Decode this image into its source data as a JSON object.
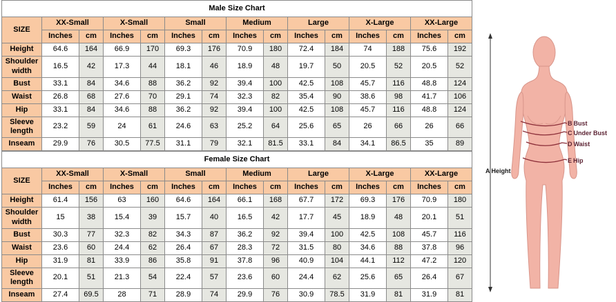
{
  "charts": [
    {
      "title": "Male Size Chart",
      "size_label": "SIZE",
      "sizes": [
        "XX-Small",
        "X-Small",
        "Small",
        "Medium",
        "Large",
        "X-Large",
        "XX-Large"
      ],
      "units": [
        "Inches",
        "cm"
      ],
      "rows": [
        {
          "label": "Height",
          "values": [
            "64.6",
            "164",
            "66.9",
            "170",
            "69.3",
            "176",
            "70.9",
            "180",
            "72.4",
            "184",
            "74",
            "188",
            "75.6",
            "192"
          ]
        },
        {
          "label": "Shoulder width",
          "values": [
            "16.5",
            "42",
            "17.3",
            "44",
            "18.1",
            "46",
            "18.9",
            "48",
            "19.7",
            "50",
            "20.5",
            "52",
            "20.5",
            "52"
          ]
        },
        {
          "label": "Bust",
          "values": [
            "33.1",
            "84",
            "34.6",
            "88",
            "36.2",
            "92",
            "39.4",
            "100",
            "42.5",
            "108",
            "45.7",
            "116",
            "48.8",
            "124"
          ]
        },
        {
          "label": "Waist",
          "values": [
            "26.8",
            "68",
            "27.6",
            "70",
            "29.1",
            "74",
            "32.3",
            "82",
            "35.4",
            "90",
            "38.6",
            "98",
            "41.7",
            "106"
          ]
        },
        {
          "label": "Hip",
          "values": [
            "33.1",
            "84",
            "34.6",
            "88",
            "36.2",
            "92",
            "39.4",
            "100",
            "42.5",
            "108",
            "45.7",
            "116",
            "48.8",
            "124"
          ]
        },
        {
          "label": "Sleeve length",
          "values": [
            "23.2",
            "59",
            "24",
            "61",
            "24.6",
            "63",
            "25.2",
            "64",
            "25.6",
            "65",
            "26",
            "66",
            "26",
            "66"
          ]
        },
        {
          "label": "Inseam",
          "values": [
            "29.9",
            "76",
            "30.5",
            "77.5",
            "31.1",
            "79",
            "32.1",
            "81.5",
            "33.1",
            "84",
            "34.1",
            "86.5",
            "35",
            "89"
          ]
        }
      ]
    },
    {
      "title": "Female Size Chart",
      "size_label": "SIZE",
      "sizes": [
        "XX-Small",
        "X-Small",
        "Small",
        "Medium",
        "Large",
        "X-Large",
        "XX-Large"
      ],
      "units": [
        "Inches",
        "cm"
      ],
      "rows": [
        {
          "label": "Height",
          "values": [
            "61.4",
            "156",
            "63",
            "160",
            "64.6",
            "164",
            "66.1",
            "168",
            "67.7",
            "172",
            "69.3",
            "176",
            "70.9",
            "180"
          ]
        },
        {
          "label": "Shoulder width",
          "values": [
            "15",
            "38",
            "15.4",
            "39",
            "15.7",
            "40",
            "16.5",
            "42",
            "17.7",
            "45",
            "18.9",
            "48",
            "20.1",
            "51"
          ]
        },
        {
          "label": "Bust",
          "values": [
            "30.3",
            "77",
            "32.3",
            "82",
            "34.3",
            "87",
            "36.2",
            "92",
            "39.4",
            "100",
            "42.5",
            "108",
            "45.7",
            "116"
          ]
        },
        {
          "label": "Waist",
          "values": [
            "23.6",
            "60",
            "24.4",
            "62",
            "26.4",
            "67",
            "28.3",
            "72",
            "31.5",
            "80",
            "34.6",
            "88",
            "37.8",
            "96"
          ]
        },
        {
          "label": "Hip",
          "values": [
            "31.9",
            "81",
            "33.9",
            "86",
            "35.8",
            "91",
            "37.8",
            "96",
            "40.9",
            "104",
            "44.1",
            "112",
            "47.2",
            "120"
          ]
        },
        {
          "label": "Sleeve length",
          "values": [
            "20.1",
            "51",
            "21.3",
            "54",
            "22.4",
            "57",
            "23.6",
            "60",
            "24.4",
            "62",
            "25.6",
            "65",
            "26.4",
            "67"
          ]
        },
        {
          "label": "Inseam",
          "values": [
            "27.4",
            "69.5",
            "28",
            "71",
            "28.9",
            "74",
            "29.9",
            "76",
            "30.9",
            "78.5",
            "31.9",
            "81",
            "31.9",
            "81"
          ]
        }
      ]
    }
  ],
  "chart_data": [
    {
      "type": "table",
      "title": "Male Size Chart",
      "row_header": "SIZE",
      "columns": [
        "XX-Small",
        "X-Small",
        "Small",
        "Medium",
        "Large",
        "X-Large",
        "XX-Large"
      ],
      "units_per_column": [
        "Inches",
        "cm"
      ],
      "rows": [
        {
          "measurement": "Height",
          "inches": [
            64.6,
            66.9,
            69.3,
            70.9,
            72.4,
            74,
            75.6
          ],
          "cm": [
            164,
            170,
            176,
            180,
            184,
            188,
            192
          ]
        },
        {
          "measurement": "Shoulder width",
          "inches": [
            16.5,
            17.3,
            18.1,
            18.9,
            19.7,
            20.5,
            20.5
          ],
          "cm": [
            42,
            44,
            46,
            48,
            50,
            52,
            52
          ]
        },
        {
          "measurement": "Bust",
          "inches": [
            33.1,
            34.6,
            36.2,
            39.4,
            42.5,
            45.7,
            48.8
          ],
          "cm": [
            84,
            88,
            92,
            100,
            108,
            116,
            124
          ]
        },
        {
          "measurement": "Waist",
          "inches": [
            26.8,
            27.6,
            29.1,
            32.3,
            35.4,
            38.6,
            41.7
          ],
          "cm": [
            68,
            70,
            74,
            82,
            90,
            98,
            106
          ]
        },
        {
          "measurement": "Hip",
          "inches": [
            33.1,
            34.6,
            36.2,
            39.4,
            42.5,
            45.7,
            48.8
          ],
          "cm": [
            84,
            88,
            92,
            100,
            108,
            116,
            124
          ]
        },
        {
          "measurement": "Sleeve length",
          "inches": [
            23.2,
            24,
            24.6,
            25.2,
            25.6,
            26,
            26
          ],
          "cm": [
            59,
            61,
            63,
            64,
            65,
            66,
            66
          ]
        },
        {
          "measurement": "Inseam",
          "inches": [
            29.9,
            30.5,
            31.1,
            32.1,
            33.1,
            34.1,
            35
          ],
          "cm": [
            76,
            77.5,
            79,
            81.5,
            84,
            86.5,
            89
          ]
        }
      ]
    },
    {
      "type": "table",
      "title": "Female Size Chart",
      "row_header": "SIZE",
      "columns": [
        "XX-Small",
        "X-Small",
        "Small",
        "Medium",
        "Large",
        "X-Large",
        "XX-Large"
      ],
      "units_per_column": [
        "Inches",
        "cm"
      ],
      "rows": [
        {
          "measurement": "Height",
          "inches": [
            61.4,
            63,
            64.6,
            66.1,
            67.7,
            69.3,
            70.9
          ],
          "cm": [
            156,
            160,
            164,
            168,
            172,
            176,
            180
          ]
        },
        {
          "measurement": "Shoulder width",
          "inches": [
            15,
            15.4,
            15.7,
            16.5,
            17.7,
            18.9,
            20.1
          ],
          "cm": [
            38,
            39,
            40,
            42,
            45,
            48,
            51
          ]
        },
        {
          "measurement": "Bust",
          "inches": [
            30.3,
            32.3,
            34.3,
            36.2,
            39.4,
            42.5,
            45.7
          ],
          "cm": [
            77,
            82,
            87,
            92,
            100,
            108,
            116
          ]
        },
        {
          "measurement": "Waist",
          "inches": [
            23.6,
            24.4,
            26.4,
            28.3,
            31.5,
            34.6,
            37.8
          ],
          "cm": [
            60,
            62,
            67,
            72,
            80,
            88,
            96
          ]
        },
        {
          "measurement": "Hip",
          "inches": [
            31.9,
            33.9,
            35.8,
            37.8,
            40.9,
            44.1,
            47.2
          ],
          "cm": [
            81,
            86,
            91,
            96,
            104,
            112,
            120
          ]
        },
        {
          "measurement": "Sleeve length",
          "inches": [
            20.1,
            21.3,
            22.4,
            23.6,
            24.4,
            25.6,
            26.4
          ],
          "cm": [
            51,
            54,
            57,
            60,
            62,
            65,
            67
          ]
        },
        {
          "measurement": "Inseam",
          "inches": [
            27.4,
            28,
            28.9,
            29.9,
            30.9,
            31.9,
            31.9
          ],
          "cm": [
            69.5,
            71,
            74,
            76,
            78.5,
            81,
            81
          ]
        }
      ]
    }
  ],
  "figure": {
    "height_label": {
      "key": "A",
      "text": "Height"
    },
    "point_labels": [
      {
        "key": "B",
        "text": "Bust"
      },
      {
        "key": "C",
        "text": "Under Bust"
      },
      {
        "key": "D",
        "text": "Waist"
      },
      {
        "key": "E",
        "text": "Hip"
      }
    ]
  },
  "colors": {
    "header_bg": "#f9c9a3",
    "cm_cell_bg": "#e6e7e1",
    "value_cell_bg": "#ffffff",
    "table_border": "#8a8a8a",
    "figure_skin": "#f2b3a6",
    "figure_outline": "#d8958a",
    "measure_line": "#8c2f39",
    "figure_label_color": "#5c2333",
    "height_line": "#333333"
  }
}
